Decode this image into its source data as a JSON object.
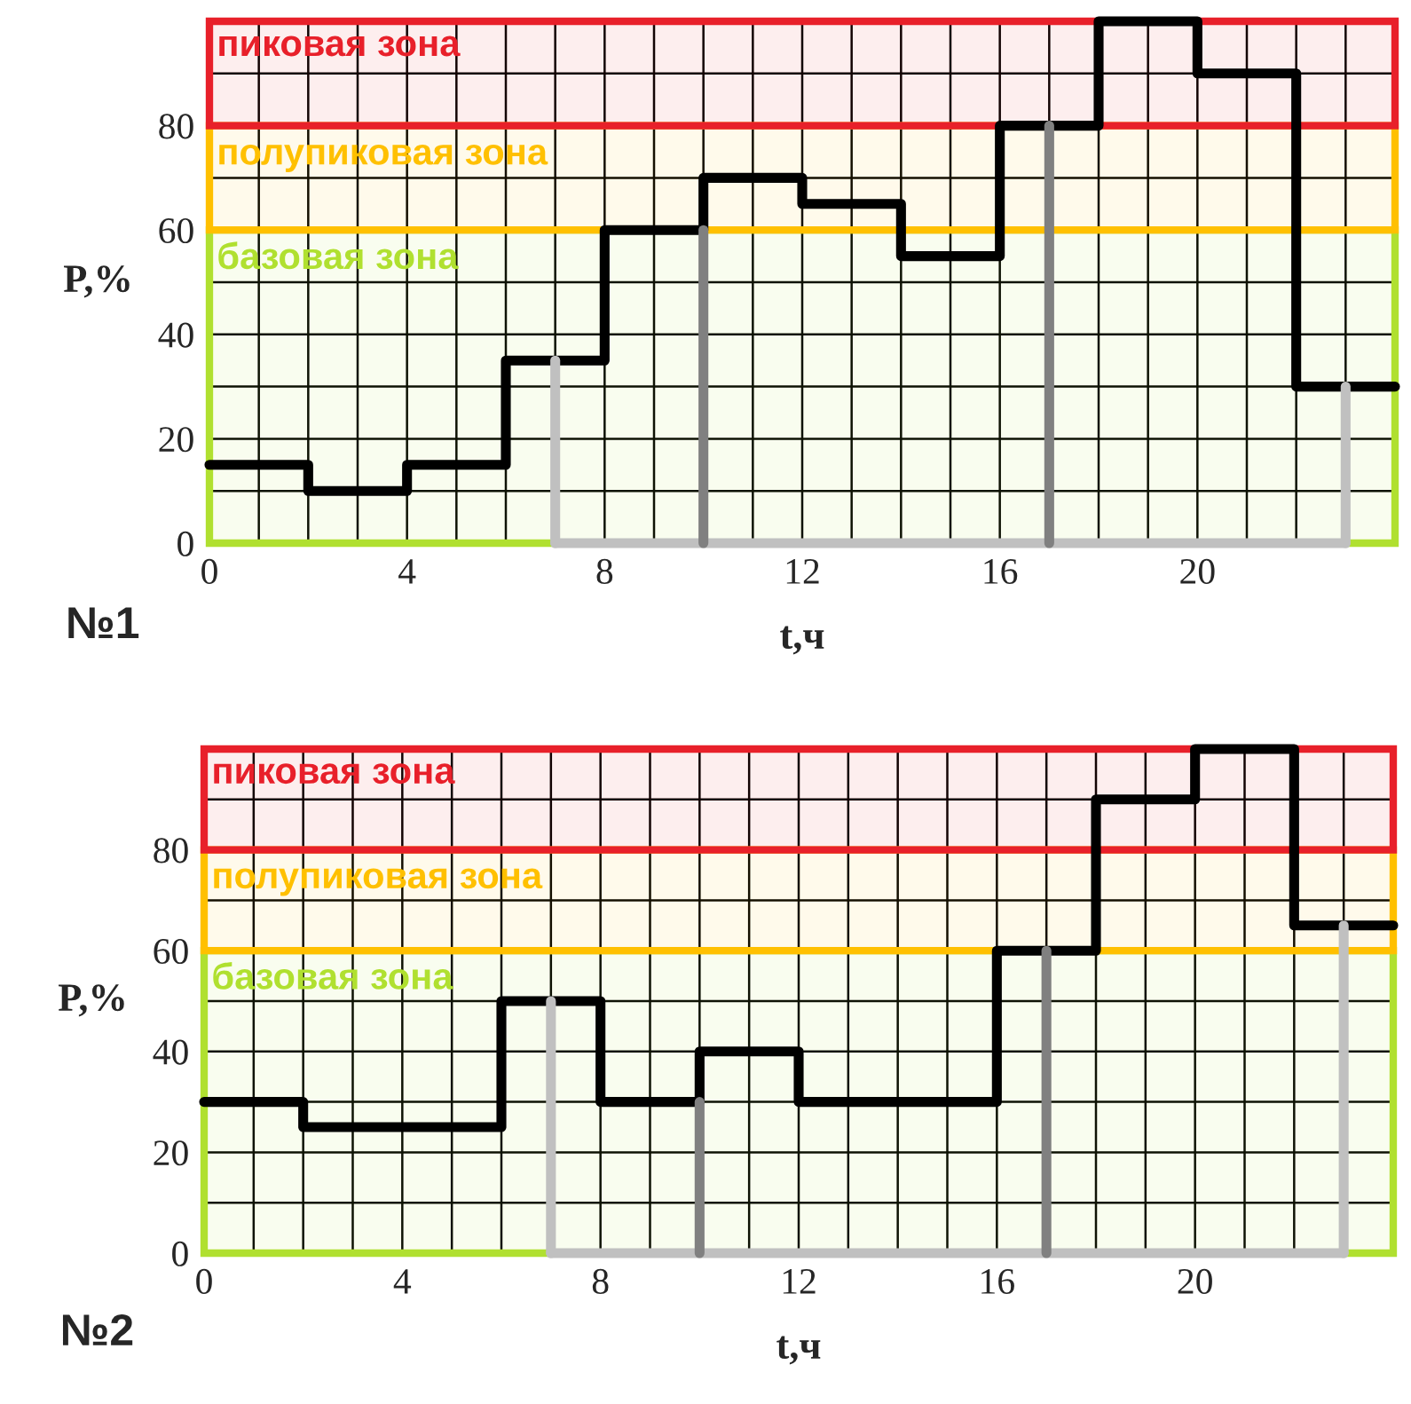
{
  "chart_data": [
    {
      "type": "step",
      "xlabel": "t,ч",
      "ylabel": "P,%",
      "annotations": [
        "№1"
      ],
      "grid": true,
      "xlim": [
        0,
        24
      ],
      "ylim": [
        0,
        100
      ],
      "xticks": [
        0,
        {
          "value": 1,
          "label": null
        },
        {
          "value": 2,
          "label": null
        },
        {
          "value": 3,
          "label": null
        },
        4,
        {
          "value": 5,
          "label": null
        },
        {
          "value": 6,
          "label": null
        },
        {
          "value": 7,
          "label": null
        },
        8,
        {
          "value": 9,
          "label": null
        },
        {
          "value": 10,
          "label": null
        },
        {
          "value": 11,
          "label": null
        },
        12,
        {
          "value": 13,
          "label": null
        },
        {
          "value": 14,
          "label": null
        },
        {
          "value": 15,
          "label": null
        },
        16,
        {
          "value": 17,
          "label": null
        },
        {
          "value": 18,
          "label": null
        },
        {
          "value": 19,
          "label": null
        },
        20,
        {
          "value": 21,
          "label": null
        },
        {
          "value": 22,
          "label": null
        },
        {
          "value": 23,
          "label": null
        }
      ],
      "yticks": [
        0,
        {
          "value": 10,
          "label": null
        },
        20,
        {
          "value": 30,
          "label": null
        },
        40,
        {
          "value": 50,
          "label": null
        },
        60,
        {
          "value": 70,
          "label": null
        },
        80,
        {
          "value": 90,
          "label": null
        }
      ],
      "bands": [
        {
          "axis": "y",
          "from": 0,
          "to": 60,
          "label": "базовая зона",
          "color": "#b0e030"
        },
        {
          "axis": "y",
          "from": 60,
          "to": 80,
          "label": "полупиковая зона",
          "color": "#ffc000"
        },
        {
          "axis": "y",
          "from": 80,
          "to": 100,
          "label": "пиковая зона",
          "color": "#e8202a"
        }
      ],
      "series": [
        {
          "type": "line",
          "color": "#c0c0c0",
          "x": [
            7,
            7
          ],
          "values": [
            35,
            0
          ]
        },
        {
          "type": "line",
          "color": "#c0c0c0",
          "x": [
            7,
            23
          ],
          "values": [
            0,
            0
          ]
        },
        {
          "type": "line",
          "color": "#c0c0c0",
          "x": [
            23,
            23
          ],
          "values": [
            0,
            30
          ]
        },
        {
          "type": "line",
          "color": "#808080",
          "x": [
            10,
            10
          ],
          "values": [
            0,
            60
          ]
        },
        {
          "type": "line",
          "color": "#808080",
          "x": [
            17,
            17
          ],
          "values": [
            0,
            80
          ]
        },
        {
          "color": "#000000",
          "x": [
            0,
            2,
            4,
            6,
            8,
            10,
            12,
            14,
            16,
            18,
            20,
            22,
            24
          ],
          "values": [
            15,
            10,
            15,
            35,
            60,
            70,
            65,
            55,
            80,
            100,
            90,
            30,
            30
          ]
        }
      ]
    },
    {
      "type": "step",
      "xlabel": "t,ч",
      "ylabel": "P,%",
      "annotations": [
        "№2"
      ],
      "grid": true,
      "xlim": [
        0,
        24
      ],
      "ylim": [
        0,
        100
      ],
      "xticks": [
        0,
        {
          "value": 1,
          "label": null
        },
        {
          "value": 2,
          "label": null
        },
        {
          "value": 3,
          "label": null
        },
        4,
        {
          "value": 5,
          "label": null
        },
        {
          "value": 6,
          "label": null
        },
        {
          "value": 7,
          "label": null
        },
        8,
        {
          "value": 9,
          "label": null
        },
        {
          "value": 10,
          "label": null
        },
        {
          "value": 11,
          "label": null
        },
        12,
        {
          "value": 13,
          "label": null
        },
        {
          "value": 14,
          "label": null
        },
        {
          "value": 15,
          "label": null
        },
        16,
        {
          "value": 17,
          "label": null
        },
        {
          "value": 18,
          "label": null
        },
        {
          "value": 19,
          "label": null
        },
        20,
        {
          "value": 21,
          "label": null
        },
        {
          "value": 22,
          "label": null
        },
        {
          "value": 23,
          "label": null
        }
      ],
      "yticks": [
        0,
        {
          "value": 10,
          "label": null
        },
        20,
        {
          "value": 30,
          "label": null
        },
        40,
        {
          "value": 50,
          "label": null
        },
        60,
        {
          "value": 70,
          "label": null
        },
        80,
        {
          "value": 90,
          "label": null
        }
      ],
      "bands": [
        {
          "axis": "y",
          "from": 0,
          "to": 60,
          "label": "базовая зона",
          "color": "#b0e030"
        },
        {
          "axis": "y",
          "from": 60,
          "to": 80,
          "label": "полупиковая зона",
          "color": "#ffc000"
        },
        {
          "axis": "y",
          "from": 80,
          "to": 100,
          "label": "пиковая зона",
          "color": "#e8202a"
        }
      ],
      "series": [
        {
          "type": "line",
          "color": "#c0c0c0",
          "x": [
            7,
            7
          ],
          "values": [
            50,
            0
          ]
        },
        {
          "type": "line",
          "color": "#c0c0c0",
          "x": [
            7,
            23
          ],
          "values": [
            0,
            0
          ]
        },
        {
          "type": "line",
          "color": "#c0c0c0",
          "x": [
            23,
            23
          ],
          "values": [
            0,
            65
          ]
        },
        {
          "type": "line",
          "color": "#808080",
          "x": [
            10,
            10
          ],
          "values": [
            0,
            30
          ]
        },
        {
          "type": "line",
          "color": "#808080",
          "x": [
            17,
            17
          ],
          "values": [
            0,
            60
          ]
        },
        {
          "color": "#000000",
          "x": [
            0,
            2,
            4,
            6,
            8,
            10,
            12,
            14,
            16,
            18,
            20,
            22,
            24
          ],
          "values": [
            30,
            25,
            25,
            50,
            30,
            40,
            30,
            30,
            60,
            90,
            100,
            65,
            65
          ]
        }
      ]
    }
  ]
}
